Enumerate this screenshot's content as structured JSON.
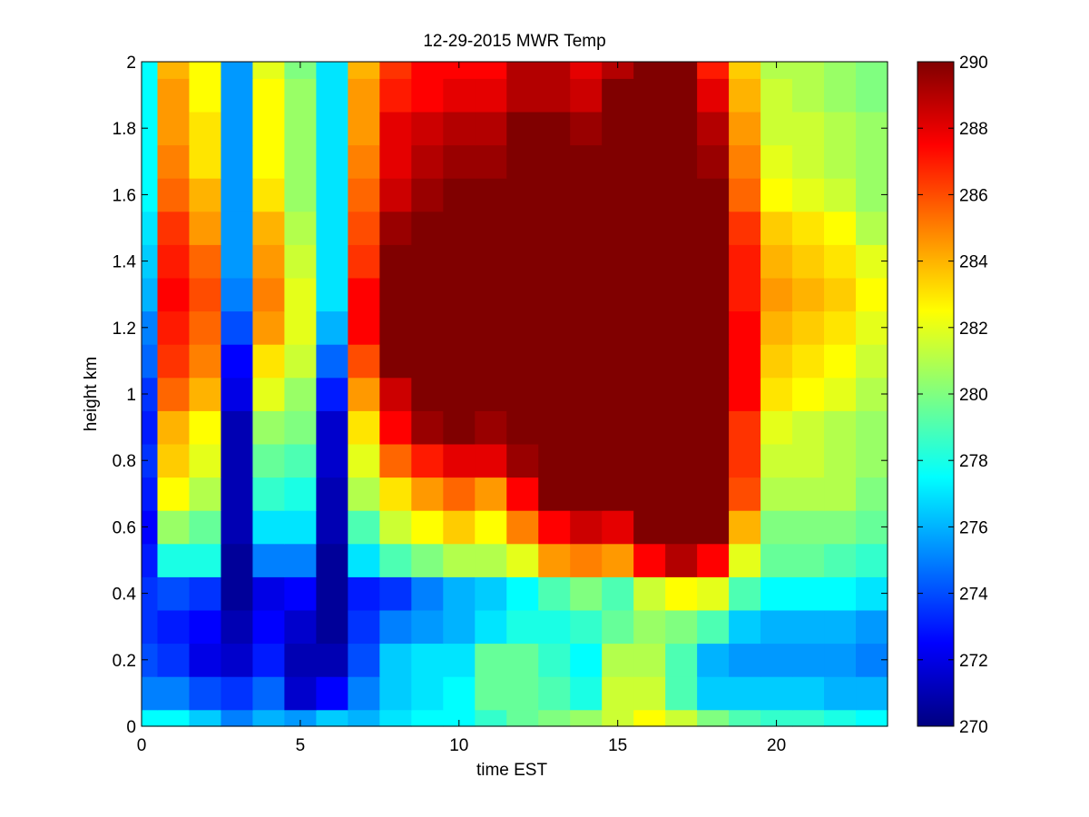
{
  "chart_data": {
    "type": "heatmap",
    "title": "12-29-2015 MWR Temp",
    "xlabel": "time EST",
    "ylabel": "height km",
    "xlim": [
      0,
      23.5
    ],
    "ylim": [
      0,
      2
    ],
    "x_ticks": [
      0,
      5,
      10,
      15,
      20
    ],
    "x_tick_labels": [
      "0",
      "5",
      "10",
      "15",
      "20"
    ],
    "y_ticks": [
      0,
      0.2,
      0.4,
      0.6,
      0.8,
      1,
      1.2,
      1.4,
      1.6,
      1.8,
      2
    ],
    "y_tick_labels": [
      "0",
      "0.2",
      "0.4",
      "0.6",
      "0.8",
      "1",
      "1.2",
      "1.4",
      "1.6",
      "1.8",
      "2"
    ],
    "x_centers": [
      0,
      1,
      2,
      3,
      4,
      5,
      6,
      7,
      8,
      9,
      10,
      11,
      12,
      13,
      14,
      15,
      16,
      17,
      18,
      19,
      20,
      21,
      22,
      23
    ],
    "x_edges": [
      0,
      0.5,
      1.5,
      2.5,
      3.5,
      4.5,
      5.5,
      6.5,
      7.5,
      8.5,
      9.5,
      10.5,
      11.5,
      12.5,
      13.5,
      14.5,
      15.5,
      16.5,
      17.5,
      18.5,
      19.5,
      20.5,
      21.5,
      22.5,
      23.5
    ],
    "y_edges": [
      0,
      0.05,
      0.15,
      0.25,
      0.35,
      0.45,
      0.55,
      0.65,
      0.75,
      0.85,
      0.95,
      1.05,
      1.15,
      1.25,
      1.35,
      1.45,
      1.55,
      1.65,
      1.75,
      1.85,
      1.95,
      2.0
    ],
    "colorbar": {
      "limits": [
        270,
        290
      ],
      "ticks": [
        270,
        272,
        274,
        276,
        278,
        280,
        282,
        284,
        286,
        288,
        290
      ],
      "tick_labels": [
        "270",
        "272",
        "274",
        "276",
        "278",
        "280",
        "282",
        "284",
        "286",
        "288",
        "290"
      ],
      "colormap": "jet"
    },
    "values_bottom_to_top": [
      [
        277.5,
        277.5,
        276.5,
        275.0,
        276.0,
        275.5,
        276.5,
        276.0,
        277.0,
        277.5,
        277.5,
        278.5,
        279.5,
        280.0,
        280.5,
        281.5,
        282.5,
        281.5,
        280.0,
        279.0,
        278.5,
        278.5,
        278.0,
        277.5
      ],
      [
        275.0,
        275.0,
        274.0,
        273.5,
        274.5,
        271.5,
        272.5,
        275.0,
        276.5,
        277.0,
        277.5,
        279.5,
        279.5,
        279.0,
        278.0,
        281.5,
        281.5,
        279.0,
        276.5,
        276.5,
        276.5,
        276.5,
        276.0,
        276.0
      ],
      [
        274.0,
        273.5,
        272.0,
        271.5,
        273.0,
        271.0,
        271.0,
        274.0,
        276.5,
        277.0,
        277.0,
        279.5,
        279.5,
        278.5,
        277.5,
        281.0,
        281.0,
        279.0,
        276.0,
        275.5,
        275.5,
        275.5,
        275.5,
        275.0
      ],
      [
        273.5,
        273.0,
        272.5,
        271.0,
        272.5,
        271.5,
        270.5,
        273.5,
        275.0,
        275.5,
        276.0,
        277.0,
        278.0,
        278.0,
        278.5,
        279.5,
        280.5,
        280.0,
        279.0,
        276.5,
        276.0,
        276.0,
        276.0,
        275.5
      ],
      [
        273.5,
        274.0,
        273.5,
        270.5,
        272.0,
        272.5,
        270.5,
        273.0,
        273.5,
        275.0,
        276.0,
        276.5,
        277.5,
        279.0,
        280.0,
        279.0,
        281.5,
        282.5,
        282.0,
        279.0,
        277.5,
        277.5,
        277.5,
        277.0
      ],
      [
        273.0,
        278.0,
        278.0,
        270.5,
        275.0,
        275.0,
        270.5,
        277.0,
        279.0,
        280.0,
        281.0,
        281.0,
        282.0,
        284.5,
        285.0,
        284.5,
        287.5,
        289.0,
        287.5,
        282.0,
        279.5,
        279.5,
        279.0,
        278.5
      ],
      [
        272.5,
        280.5,
        279.5,
        271.0,
        277.0,
        277.0,
        271.0,
        279.0,
        281.5,
        282.5,
        283.5,
        282.5,
        285.0,
        287.5,
        288.5,
        288.0,
        290.0,
        290.0,
        290.0,
        284.0,
        280.0,
        280.0,
        280.0,
        279.5
      ],
      [
        273.0,
        282.5,
        281.0,
        271.0,
        278.5,
        278.0,
        271.0,
        281.0,
        283.0,
        284.5,
        285.5,
        284.5,
        287.5,
        290.0,
        290.0,
        290.0,
        290.0,
        290.0,
        290.0,
        286.0,
        281.0,
        281.0,
        281.0,
        280.0
      ],
      [
        273.5,
        283.5,
        282.0,
        271.0,
        279.5,
        279.0,
        271.5,
        282.0,
        285.5,
        287.0,
        288.0,
        288.0,
        289.5,
        290.0,
        290.0,
        290.0,
        290.0,
        290.0,
        290.0,
        286.5,
        281.5,
        281.5,
        281.0,
        280.5
      ],
      [
        273.0,
        284.0,
        282.5,
        271.0,
        280.5,
        280.0,
        271.5,
        283.0,
        287.5,
        289.5,
        290.0,
        289.5,
        290.0,
        290.0,
        290.0,
        290.0,
        290.0,
        290.0,
        290.0,
        286.5,
        282.0,
        281.5,
        281.0,
        280.5
      ],
      [
        273.5,
        285.5,
        284.0,
        272.0,
        282.0,
        280.5,
        273.0,
        284.5,
        288.5,
        290.0,
        290.0,
        290.0,
        290.0,
        290.0,
        290.0,
        290.0,
        290.0,
        290.0,
        290.0,
        287.5,
        283.0,
        282.5,
        282.0,
        281.0
      ],
      [
        274.5,
        286.5,
        285.0,
        272.5,
        283.0,
        281.5,
        274.5,
        286.0,
        290.0,
        290.0,
        290.0,
        290.0,
        290.0,
        290.0,
        290.0,
        290.0,
        290.0,
        290.0,
        290.0,
        287.5,
        283.5,
        283.0,
        282.5,
        281.5
      ],
      [
        275.0,
        287.0,
        285.5,
        274.0,
        284.5,
        282.0,
        276.0,
        287.5,
        290.0,
        290.0,
        290.0,
        290.0,
        290.0,
        290.0,
        290.0,
        290.0,
        290.0,
        290.0,
        290.0,
        287.5,
        284.0,
        283.5,
        283.0,
        282.0
      ],
      [
        276.0,
        287.5,
        286.0,
        275.0,
        285.0,
        282.0,
        277.0,
        287.5,
        290.0,
        290.0,
        290.0,
        290.0,
        290.0,
        290.0,
        290.0,
        290.0,
        290.0,
        290.0,
        290.0,
        287.0,
        284.5,
        284.0,
        283.5,
        282.5
      ],
      [
        276.5,
        287.0,
        285.5,
        275.5,
        284.5,
        281.5,
        277.0,
        286.5,
        290.0,
        290.0,
        290.0,
        290.0,
        290.0,
        290.0,
        290.0,
        290.0,
        290.0,
        290.0,
        290.0,
        287.0,
        284.0,
        283.5,
        283.0,
        282.0
      ],
      [
        277.0,
        286.5,
        284.5,
        275.5,
        284.0,
        281.0,
        277.0,
        286.0,
        289.5,
        290.0,
        290.0,
        290.0,
        290.0,
        290.0,
        290.0,
        290.0,
        290.0,
        290.0,
        290.0,
        286.5,
        283.5,
        283.0,
        282.5,
        281.0
      ],
      [
        277.5,
        285.5,
        284.0,
        275.5,
        283.0,
        280.5,
        277.0,
        285.5,
        288.5,
        289.5,
        290.0,
        290.0,
        290.0,
        290.0,
        290.0,
        290.0,
        290.0,
        290.0,
        290.0,
        285.5,
        282.5,
        282.0,
        281.5,
        280.5
      ],
      [
        277.5,
        285.0,
        283.0,
        275.5,
        282.5,
        280.5,
        277.0,
        285.0,
        288.0,
        289.0,
        289.5,
        289.5,
        290.0,
        290.0,
        290.0,
        290.0,
        290.0,
        290.0,
        289.5,
        285.0,
        282.0,
        281.5,
        281.0,
        280.5
      ],
      [
        277.5,
        284.5,
        283.0,
        275.5,
        282.5,
        280.5,
        277.0,
        284.5,
        288.0,
        288.5,
        289.0,
        289.0,
        290.0,
        290.0,
        289.5,
        290.0,
        290.0,
        290.0,
        289.0,
        284.5,
        281.5,
        281.5,
        281.0,
        280.5
      ],
      [
        277.5,
        284.5,
        282.5,
        275.5,
        282.5,
        280.5,
        277.0,
        284.5,
        287.0,
        287.5,
        288.0,
        288.0,
        289.0,
        289.0,
        288.5,
        290.0,
        290.0,
        290.0,
        288.0,
        284.0,
        281.5,
        281.0,
        280.5,
        280.0
      ],
      [
        277.5,
        284.0,
        282.5,
        275.5,
        282.0,
        280.0,
        277.0,
        284.0,
        286.5,
        287.5,
        287.5,
        287.5,
        289.0,
        289.0,
        288.0,
        289.0,
        290.0,
        290.0,
        287.0,
        283.5,
        281.0,
        281.0,
        280.5,
        280.0
      ]
    ]
  }
}
